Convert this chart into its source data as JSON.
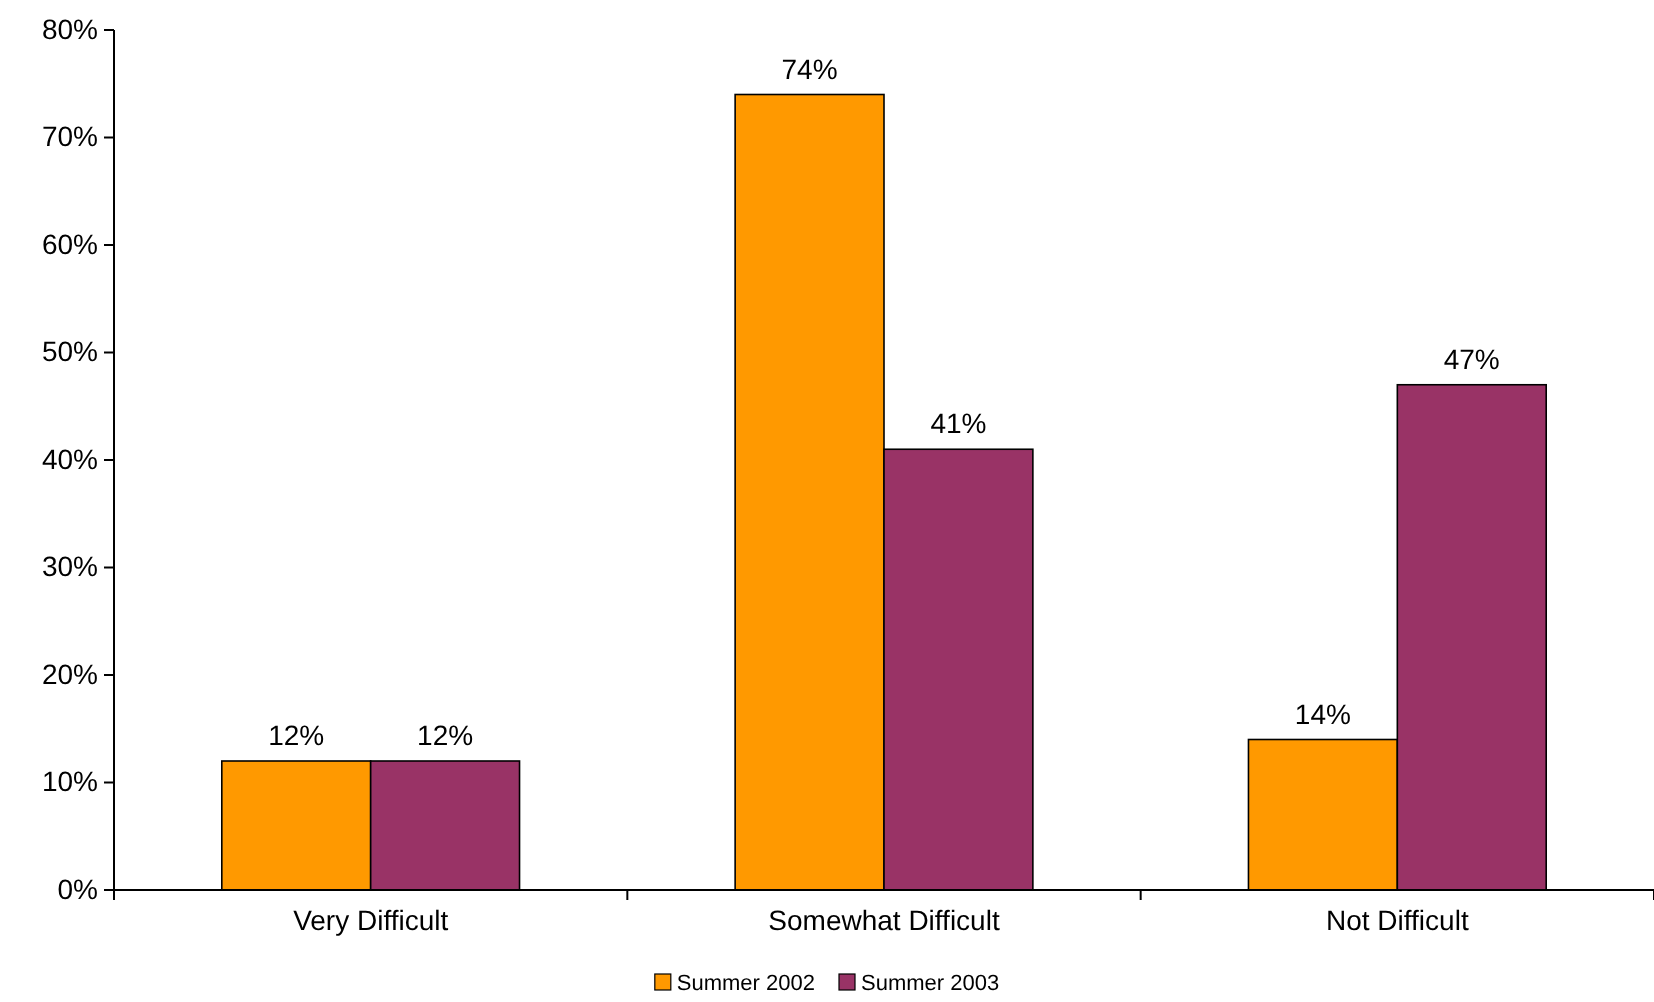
{
  "chart_data": {
    "type": "bar",
    "categories": [
      "Very Difficult",
      "Somewhat Difficult",
      "Not Difficult"
    ],
    "series": [
      {
        "name": "Summer 2002",
        "color": "#ff9900",
        "values": [
          12,
          74,
          14
        ],
        "value_labels": [
          "12%",
          "74%",
          "14%"
        ]
      },
      {
        "name": "Summer 2003",
        "color": "#993366",
        "values": [
          12,
          41,
          47
        ],
        "value_labels": [
          "12%",
          "41%",
          "47%"
        ]
      }
    ],
    "ylim": [
      0,
      80
    ],
    "yticks": [
      {
        "value": 0,
        "label": "0%"
      },
      {
        "value": 10,
        "label": "10%"
      },
      {
        "value": 20,
        "label": "20%"
      },
      {
        "value": 30,
        "label": "30%"
      },
      {
        "value": 40,
        "label": "40%"
      },
      {
        "value": 50,
        "label": "50%"
      },
      {
        "value": 60,
        "label": "60%"
      },
      {
        "value": 70,
        "label": "70%"
      },
      {
        "value": 80,
        "label": "80%"
      }
    ],
    "grid": false,
    "legend": "bottom"
  }
}
